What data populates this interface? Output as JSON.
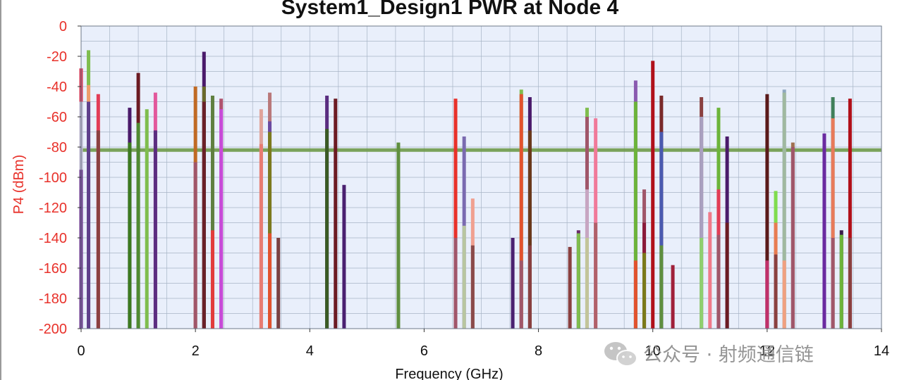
{
  "chart_data": {
    "type": "bar",
    "title": "System1_Design1 PWR at Node 4",
    "xlabel": "Frequency (GHz)",
    "ylabel": "P4 (dBm)",
    "xlim": [
      0,
      14
    ],
    "ylim": [
      -200,
      0
    ],
    "x_ticks": [
      0,
      2,
      4,
      6,
      8,
      10,
      12,
      14
    ],
    "y_ticks": [
      0,
      -20,
      -40,
      -60,
      -80,
      -100,
      -120,
      -140,
      -160,
      -180,
      -200
    ],
    "grid": true,
    "reference_line": {
      "y": -82,
      "color": "#6f9a4a"
    },
    "colors": {
      "plot_background": "#e9effb",
      "grid": "#a7b4c6",
      "axis_label_red": "#e8312a",
      "title_text": "#111111"
    },
    "series": [
      {
        "x": 0.0,
        "y": -28,
        "color": "#d23c58"
      },
      {
        "x": 0.0,
        "y": -50,
        "color": "#b9b4cc"
      },
      {
        "x": 0.0,
        "y": -95,
        "color": "#6e3c8f"
      },
      {
        "x": 0.13,
        "y": -16,
        "color": "#7fbd4e"
      },
      {
        "x": 0.13,
        "y": -39,
        "color": "#ee9d6b"
      },
      {
        "x": 0.13,
        "y": -50,
        "color": "#5e3f8c"
      },
      {
        "x": 0.3,
        "y": -45,
        "color": "#e23c56"
      },
      {
        "x": 0.3,
        "y": -69,
        "color": "#8a4040"
      },
      {
        "x": 0.85,
        "y": -54,
        "color": "#4a1a6a"
      },
      {
        "x": 0.85,
        "y": -77,
        "color": "#3c7a20"
      },
      {
        "x": 1.0,
        "y": -31,
        "color": "#6b1a22"
      },
      {
        "x": 1.0,
        "y": -64,
        "color": "#4f8a32"
      },
      {
        "x": 1.15,
        "y": -55,
        "color": "#7fbd4e"
      },
      {
        "x": 1.3,
        "y": -44,
        "color": "#e2589c"
      },
      {
        "x": 1.3,
        "y": -69,
        "color": "#5a2d80"
      },
      {
        "x": 2.0,
        "y": -40,
        "color": "#c06a24"
      },
      {
        "x": 2.0,
        "y": -90,
        "color": "#a0566a"
      },
      {
        "x": 2.15,
        "y": -17,
        "color": "#4a1a6a"
      },
      {
        "x": 2.15,
        "y": -40,
        "color": "#6a6a2a"
      },
      {
        "x": 2.15,
        "y": -50,
        "color": "#6a1f28"
      },
      {
        "x": 2.3,
        "y": -46,
        "color": "#5f7f3f"
      },
      {
        "x": 2.3,
        "y": -135,
        "color": "#e23c3c"
      },
      {
        "x": 2.45,
        "y": -48,
        "color": "#b0536e"
      },
      {
        "x": 2.45,
        "y": -55,
        "color": "#c84bd8"
      },
      {
        "x": 3.15,
        "y": -55,
        "color": "#e0a39a"
      },
      {
        "x": 3.15,
        "y": -78,
        "color": "#e87c72"
      },
      {
        "x": 3.3,
        "y": -44,
        "color": "#b9787a"
      },
      {
        "x": 3.3,
        "y": -63,
        "color": "#6b4aa0"
      },
      {
        "x": 3.3,
        "y": -70,
        "color": "#7c7a1e"
      },
      {
        "x": 3.3,
        "y": -137,
        "color": "#e2522e"
      },
      {
        "x": 3.45,
        "y": -140,
        "color": "#7a4040"
      },
      {
        "x": 4.3,
        "y": -46,
        "color": "#5a2d80"
      },
      {
        "x": 4.3,
        "y": -68,
        "color": "#3a5a24"
      },
      {
        "x": 4.45,
        "y": -48,
        "color": "#6b1a22"
      },
      {
        "x": 4.6,
        "y": -105,
        "color": "#4a2070"
      },
      {
        "x": 5.55,
        "y": -77,
        "color": "#5f8f3f"
      },
      {
        "x": 6.55,
        "y": -48,
        "color": "#e8312a"
      },
      {
        "x": 6.55,
        "y": -140,
        "color": "#a0566a"
      },
      {
        "x": 6.7,
        "y": -73,
        "color": "#7a6ab0"
      },
      {
        "x": 6.7,
        "y": -132,
        "color": "#b8c6a0"
      },
      {
        "x": 6.85,
        "y": -114,
        "color": "#f0a090"
      },
      {
        "x": 6.85,
        "y": -145,
        "color": "#8a4a4a"
      },
      {
        "x": 7.55,
        "y": -140,
        "color": "#4a2070"
      },
      {
        "x": 7.7,
        "y": -42,
        "color": "#7fbd4e"
      },
      {
        "x": 7.7,
        "y": -45,
        "color": "#e2522e"
      },
      {
        "x": 7.7,
        "y": -155,
        "color": "#a0566a"
      },
      {
        "x": 7.85,
        "y": -47,
        "color": "#4a1a6a"
      },
      {
        "x": 7.85,
        "y": -69,
        "color": "#6b3a1a"
      },
      {
        "x": 7.85,
        "y": -145,
        "color": "#8a4040"
      },
      {
        "x": 8.55,
        "y": -146,
        "color": "#8a4040"
      },
      {
        "x": 8.7,
        "y": -135,
        "color": "#6a2a6a"
      },
      {
        "x": 8.7,
        "y": -137,
        "color": "#7fbd4e"
      },
      {
        "x": 8.85,
        "y": -54,
        "color": "#7fbd4e"
      },
      {
        "x": 8.85,
        "y": -60,
        "color": "#a0566a"
      },
      {
        "x": 8.85,
        "y": -108,
        "color": "#c7a6c2"
      },
      {
        "x": 8.85,
        "y": -140,
        "color": "#c2c49a"
      },
      {
        "x": 9.0,
        "y": -61,
        "color": "#f07a9a"
      },
      {
        "x": 9.0,
        "y": -130,
        "color": "#b0606a"
      },
      {
        "x": 9.7,
        "y": -36,
        "color": "#8a5ab0"
      },
      {
        "x": 9.7,
        "y": -50,
        "color": "#6cb43a"
      },
      {
        "x": 9.7,
        "y": -155,
        "color": "#e2522e"
      },
      {
        "x": 9.85,
        "y": -108,
        "color": "#a0566a"
      },
      {
        "x": 9.85,
        "y": -130,
        "color": "#8a1a3a"
      },
      {
        "x": 9.85,
        "y": -150,
        "color": "#7a7a1a"
      },
      {
        "x": 10.0,
        "y": -23,
        "color": "#b0101a"
      },
      {
        "x": 10.15,
        "y": -46,
        "color": "#7a2a2a"
      },
      {
        "x": 10.15,
        "y": -70,
        "color": "#4a5ab0"
      },
      {
        "x": 10.15,
        "y": -145,
        "color": "#5f8f3f"
      },
      {
        "x": 10.35,
        "y": -158,
        "color": "#a0203a"
      },
      {
        "x": 10.85,
        "y": -47,
        "color": "#8a4040"
      },
      {
        "x": 10.85,
        "y": -60,
        "color": "#a9a0c0"
      },
      {
        "x": 10.85,
        "y": -140,
        "color": "#8fcf6e"
      },
      {
        "x": 11.0,
        "y": -123,
        "color": "#f07a8a"
      },
      {
        "x": 11.15,
        "y": -54,
        "color": "#6cb43a"
      },
      {
        "x": 11.15,
        "y": -108,
        "color": "#e23c56"
      },
      {
        "x": 11.15,
        "y": -138,
        "color": "#a0566a"
      },
      {
        "x": 11.3,
        "y": -73,
        "color": "#4a1a6a"
      },
      {
        "x": 11.3,
        "y": -130,
        "color": "#6b1a22"
      },
      {
        "x": 12.0,
        "y": -45,
        "color": "#5a1a1a"
      },
      {
        "x": 12.0,
        "y": -155,
        "color": "#c0306a"
      },
      {
        "x": 12.15,
        "y": -109,
        "color": "#7fdc4e"
      },
      {
        "x": 12.15,
        "y": -130,
        "color": "#e87c52"
      },
      {
        "x": 12.15,
        "y": -151,
        "color": "#8a4040"
      },
      {
        "x": 12.3,
        "y": -42,
        "color": "#8fa8c0"
      },
      {
        "x": 12.3,
        "y": -44,
        "color": "#a0b8a0"
      },
      {
        "x": 12.3,
        "y": -155,
        "color": "#f0a080"
      },
      {
        "x": 12.45,
        "y": -77,
        "color": "#a07050"
      },
      {
        "x": 12.45,
        "y": -80,
        "color": "#a0566a"
      },
      {
        "x": 13.0,
        "y": -71,
        "color": "#6a2aa0"
      },
      {
        "x": 13.15,
        "y": -47,
        "color": "#3f7f5a"
      },
      {
        "x": 13.15,
        "y": -61,
        "color": "#e87a5a"
      },
      {
        "x": 13.15,
        "y": -140,
        "color": "#a0566a"
      },
      {
        "x": 13.3,
        "y": -135,
        "color": "#3a1a4a"
      },
      {
        "x": 13.3,
        "y": -138,
        "color": "#6cb43a"
      },
      {
        "x": 13.45,
        "y": -48,
        "color": "#b0101a"
      },
      {
        "x": 13.45,
        "y": -140,
        "color": "#8a4040"
      }
    ]
  },
  "watermark": {
    "text": "公众号 · 射频通信链"
  }
}
